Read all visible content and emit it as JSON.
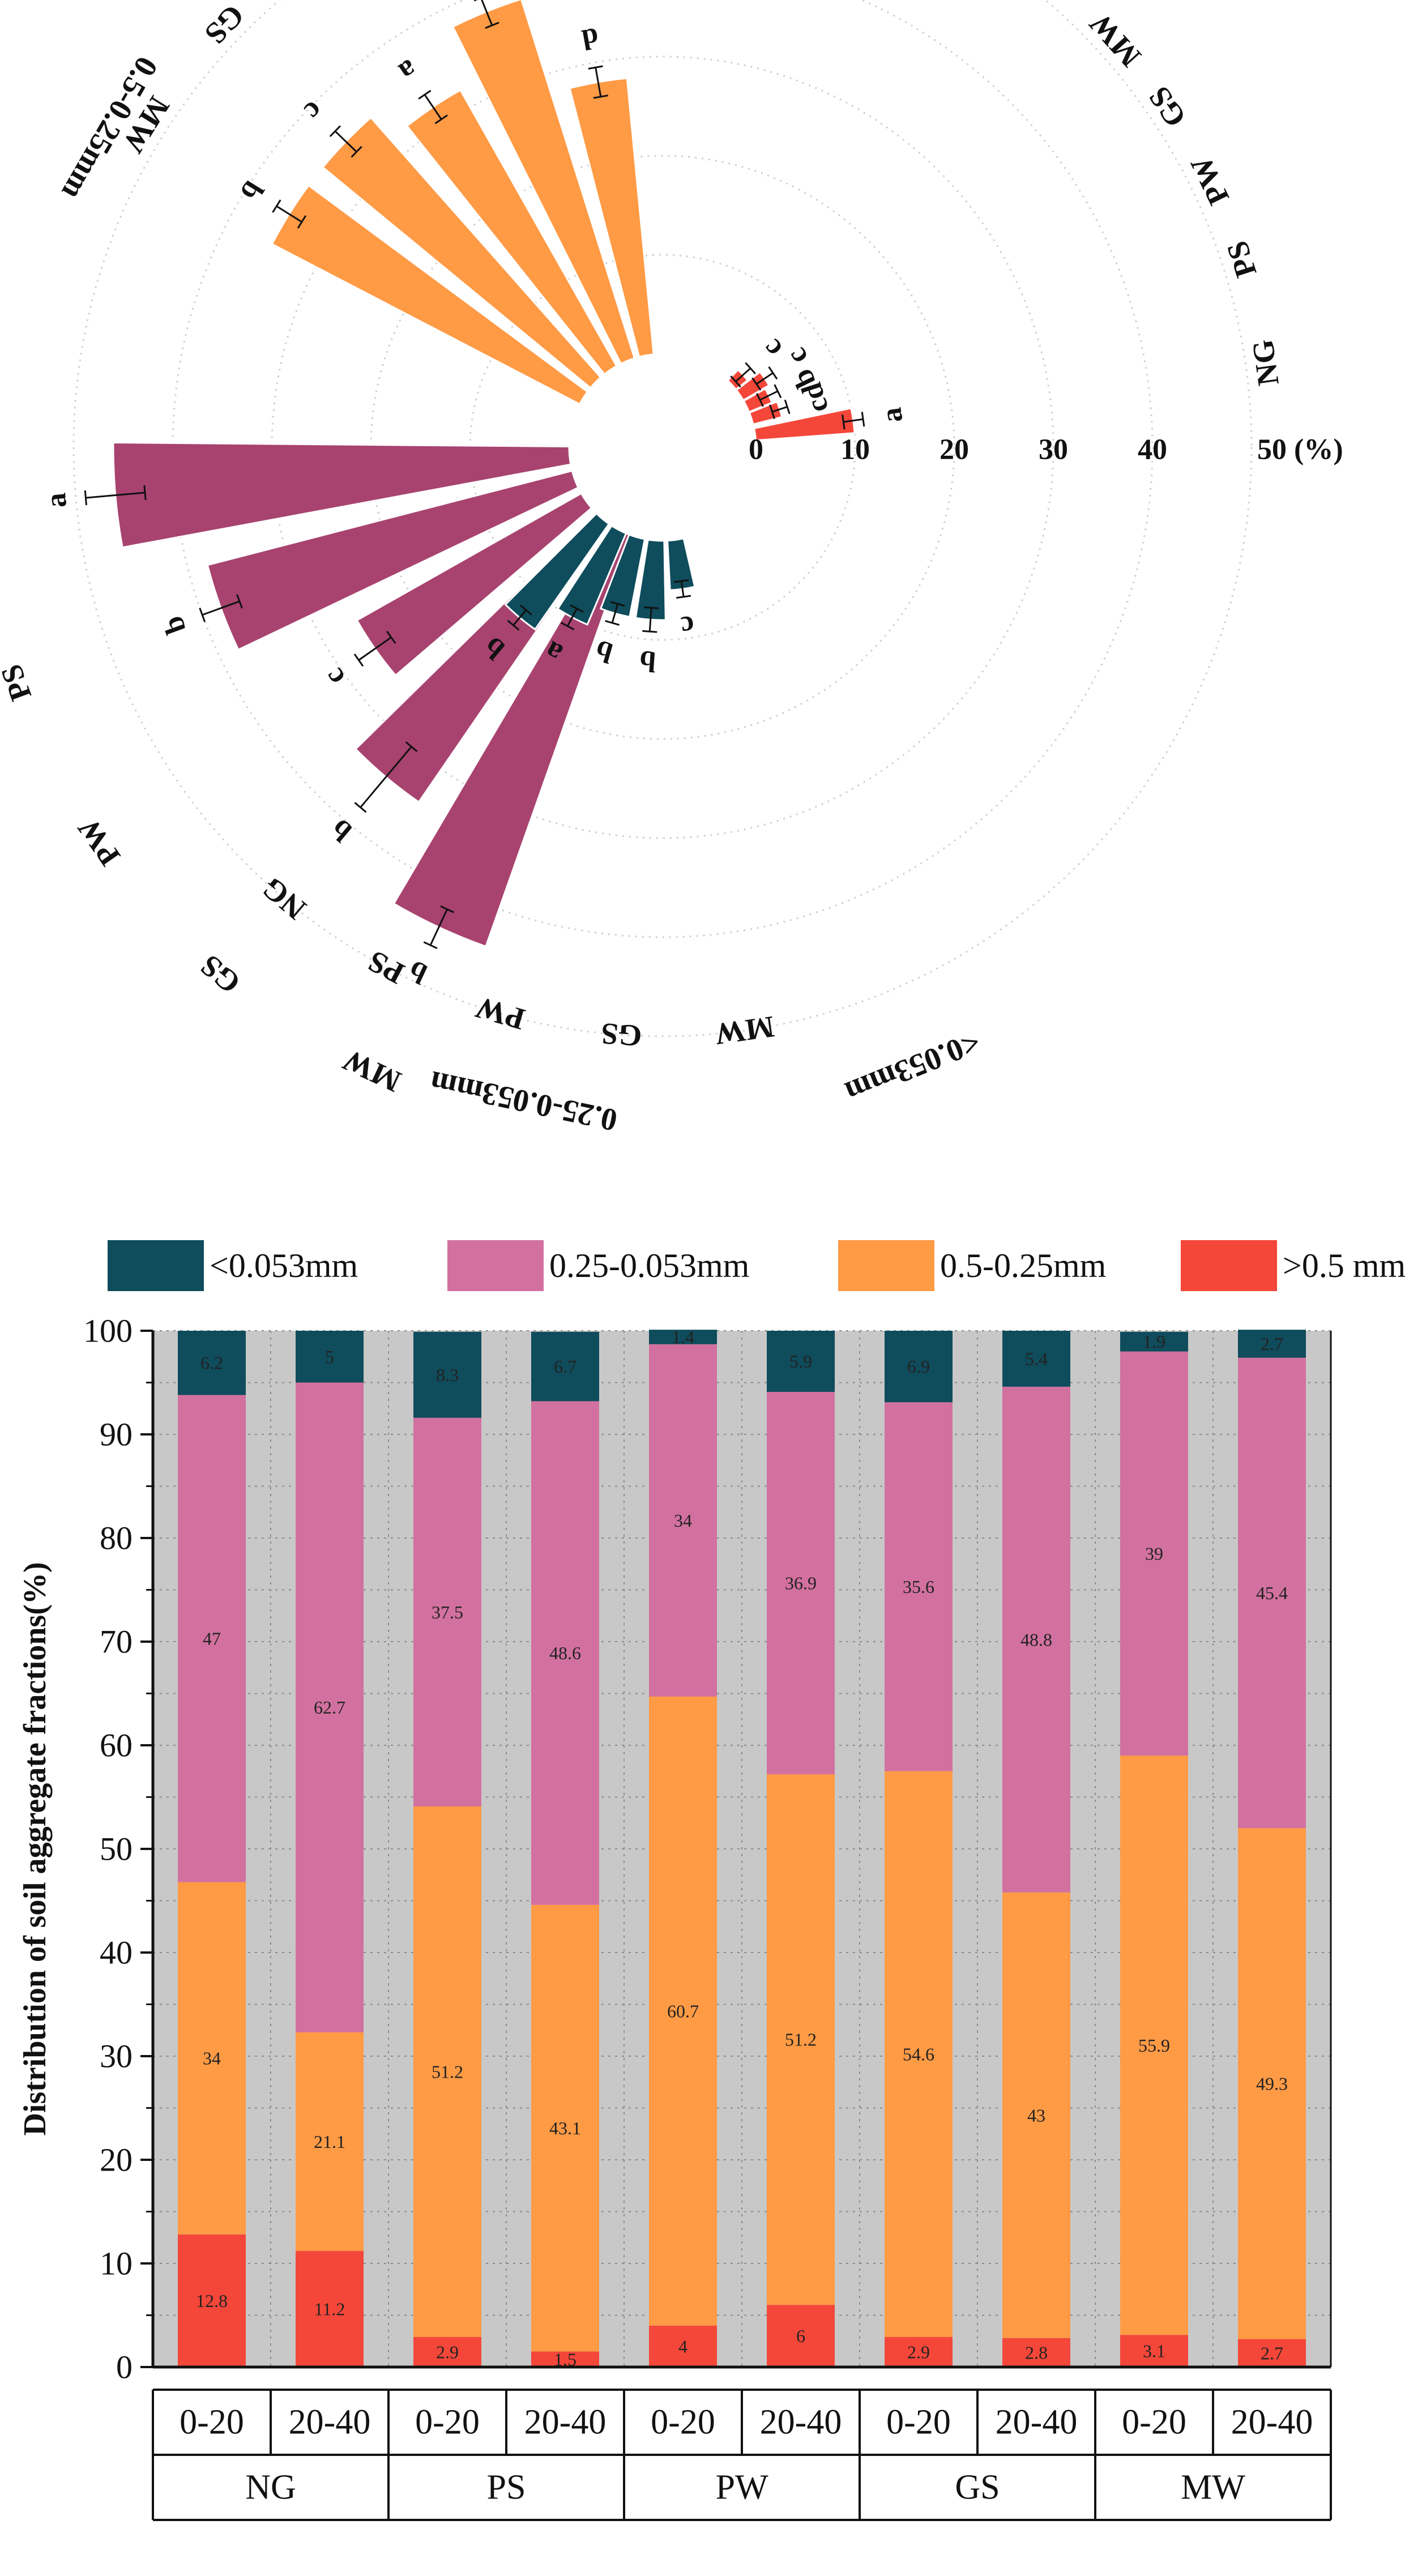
{
  "chart_data": [
    {
      "type": "polar-bar",
      "title": "",
      "radial_axis": {
        "ticks": [
          "0",
          "10",
          "20",
          "30",
          "40"
        ],
        "unit_label": "50 (%)",
        "range": [
          0,
          50
        ]
      },
      "treatments": [
        "NG",
        "PS",
        "PW",
        "GS",
        "MW"
      ],
      "series": [
        {
          "name": ">0.5 mm",
          "color": "#F4473A",
          "values": [
            10.0,
            3.0,
            2.5,
            3.0,
            1.5
          ],
          "errors": [
            1.0,
            0.8,
            1.0,
            1.0,
            1.0
          ],
          "letters": [
            "a",
            "cd",
            "b",
            "c",
            "c"
          ],
          "treatment_labels": [
            "NG",
            "PS",
            "PW",
            "GS",
            "MW"
          ]
        },
        {
          "name": "0.5-0.25mm",
          "color": "#FF9A45",
          "values": [
            28.0,
            38.0,
            32.0,
            35.0,
            35.0
          ],
          "errors": [
            1.5,
            1.5,
            1.5,
            1.5,
            1.5
          ],
          "letters": [
            "d",
            "c",
            "a",
            "c",
            "b"
          ],
          "treatment_labels": [
            "NG",
            "PS",
            "PW",
            "GS",
            "MW"
          ]
        },
        {
          "name": "0.25-0.053mm",
          "color": "#A84370",
          "values": [
            46.0,
            38.0,
            26.0,
            34.0,
            44.0
          ],
          "errors": [
            3.0,
            2.0,
            2.0,
            4.0,
            2.0
          ],
          "letters": [
            "a",
            "b",
            "c",
            "b",
            "b"
          ],
          "treatment_labels": [
            "NG",
            "PS",
            "PW",
            "GS",
            "MW"
          ]
        },
        {
          "name": "<0.053mm",
          "color": "#0F4C5C",
          "values": [
            5.0,
            8.0,
            8.0,
            10.0,
            13.0
          ],
          "errors": [
            0.8,
            1.2,
            1.0,
            1.0,
            1.0
          ],
          "letters": [
            "c",
            "b",
            "b",
            "a",
            "b"
          ],
          "treatment_labels": [
            "MW",
            "GS",
            "PW",
            "PS",
            "NG"
          ]
        }
      ],
      "group_labels": [
        ">0.5 mm",
        "0.5-0.25mm",
        "0.25-0.053mm",
        "<0.053mm"
      ]
    },
    {
      "type": "stacked-bar",
      "ylabel": "Distribution of soil aggregate fractions(%)",
      "ylim": [
        0,
        100
      ],
      "yticks": [
        "0",
        "10",
        "20",
        "30",
        "40",
        "50",
        "60",
        "70",
        "80",
        "90",
        "100"
      ],
      "categories": [
        "0-20",
        "20-40",
        "0-20",
        "20-40",
        "0-20",
        "20-40",
        "0-20",
        "20-40",
        "0-20",
        "20-40"
      ],
      "groups": [
        "NG",
        "PS",
        "PW",
        "GS",
        "MW"
      ],
      "legend": [
        "<0.053mm",
        "0.25-0.053mm",
        "0.5-0.25mm",
        ">0.5 mm"
      ],
      "series": [
        {
          "name": ">0.5 mm",
          "color": "#F4473A",
          "values": [
            12.8,
            11.2,
            2.9,
            1.5,
            4,
            6,
            2.9,
            2.8,
            3.1,
            2.7
          ],
          "labels": [
            "12.8",
            "11.2",
            "2.9",
            "1.5",
            "4",
            "6",
            "2.9",
            "2.8",
            "3.1",
            "2.7"
          ]
        },
        {
          "name": "0.5-0.25mm",
          "color": "#FF9A45",
          "values": [
            34,
            21.1,
            51.2,
            43.1,
            60.7,
            51.2,
            54.6,
            43,
            55.9,
            49.3
          ],
          "labels": [
            "34",
            "21.1",
            "51.2",
            "43.1",
            "60.7",
            "51.2",
            "54.6",
            "43",
            "55.9",
            "49.3"
          ]
        },
        {
          "name": "0.25-0.053mm",
          "color": "#D2719F",
          "values": [
            47,
            62.7,
            37.5,
            48.6,
            34,
            36.9,
            35.6,
            48.8,
            39,
            45.4
          ],
          "labels": [
            "47",
            "62.7",
            "37.5",
            "48.6",
            "34",
            "36.9",
            "35.6",
            "48.8",
            "39",
            "45.4"
          ]
        },
        {
          "name": "<0.053mm",
          "color": "#0F4C5C",
          "values": [
            6.2,
            5,
            8.3,
            6.7,
            1.4,
            5.9,
            6.9,
            5.4,
            1.9,
            2.7
          ],
          "labels": [
            "6.2",
            "5",
            "8.3",
            "6.7",
            "1.4",
            "5.9",
            "6.9",
            "5.4",
            "1.9",
            "2.7"
          ]
        }
      ]
    }
  ]
}
